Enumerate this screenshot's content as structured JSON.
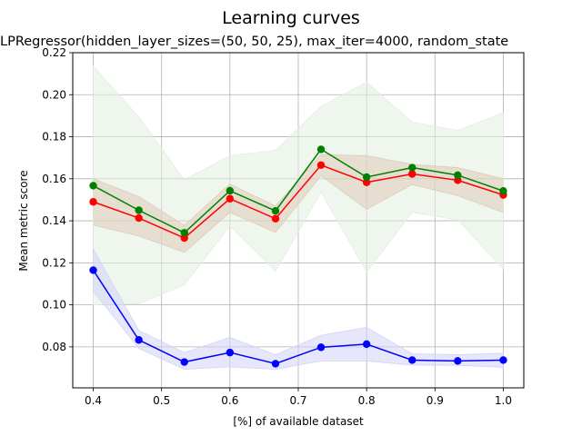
{
  "chart_data": {
    "type": "line",
    "suptitle": "Learning curves",
    "title": "LPRegressor(hidden_layer_sizes=(50, 50, 25), max_iter=4000, random_state",
    "xlabel": "[%] of available dataset",
    "ylabel": "Mean metric score",
    "xlim": [
      0.37,
      1.03
    ],
    "ylim": [
      0.0605,
      0.22
    ],
    "xticks": [
      "0.4",
      "0.5",
      "0.6",
      "0.7",
      "0.8",
      "0.9",
      "1.0"
    ],
    "yticks": [
      "0.08",
      "0.10",
      "0.12",
      "0.14",
      "0.16",
      "0.18",
      "0.20",
      "0.22"
    ],
    "grid": true,
    "x": [
      0.4,
      0.4667,
      0.5333,
      0.6,
      0.6667,
      0.7333,
      0.8,
      0.8667,
      0.9333,
      1.0
    ],
    "series": [
      {
        "color": "#ff0000",
        "values": [
          0.149,
          0.1413,
          0.1318,
          0.1505,
          0.141,
          0.1665,
          0.1583,
          0.1623,
          0.1593,
          0.1523
        ],
        "lower": [
          0.138,
          0.1328,
          0.125,
          0.144,
          0.1345,
          0.1615,
          0.1455,
          0.1573,
          0.152,
          0.144
        ],
        "upper": [
          0.16,
          0.1515,
          0.1378,
          0.1575,
          0.147,
          0.1715,
          0.171,
          0.1668,
          0.1653,
          0.16
        ],
        "band_color": "#d9a086"
      },
      {
        "color": "#008000",
        "values": [
          0.1567,
          0.145,
          0.1343,
          0.1543,
          0.1447,
          0.174,
          0.1608,
          0.1653,
          0.1617,
          0.1542
        ],
        "lower": [
          0.1,
          0.1005,
          0.1095,
          0.1375,
          0.116,
          0.1535,
          0.1155,
          0.144,
          0.1405,
          0.117
        ],
        "upper": [
          0.2135,
          0.1895,
          0.1595,
          0.171,
          0.1735,
          0.1945,
          0.206,
          0.187,
          0.183,
          0.1915
        ],
        "band_color": "#e2efe0"
      },
      {
        "color": "#0000ff",
        "values": [
          0.1165,
          0.0833,
          0.0728,
          0.0773,
          0.072,
          0.0798,
          0.0813,
          0.0737,
          0.0733,
          0.0737
        ],
        "lower": [
          0.1065,
          0.0793,
          0.0693,
          0.0705,
          0.0693,
          0.0733,
          0.0733,
          0.0713,
          0.0712,
          0.0703
        ],
        "upper": [
          0.1265,
          0.0878,
          0.0773,
          0.0845,
          0.0763,
          0.0855,
          0.0893,
          0.0767,
          0.0763,
          0.077
        ],
        "band_color": "#d3d3f7"
      }
    ]
  }
}
